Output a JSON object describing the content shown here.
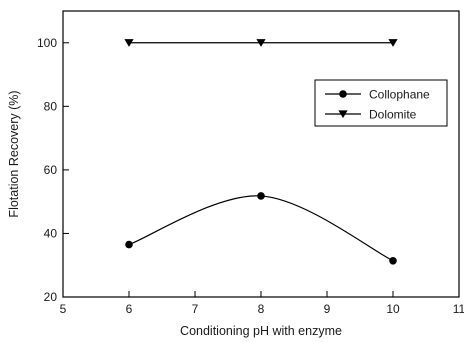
{
  "chart_data": {
    "type": "line",
    "title": "",
    "xlabel": "Conditioning pH with enzyme",
    "ylabel": "Flotation Recovery (%)",
    "xlim": [
      5,
      11
    ],
    "ylim": [
      20,
      110
    ],
    "xticks": [
      5,
      6,
      7,
      8,
      9,
      10,
      11
    ],
    "yticks": [
      20,
      40,
      60,
      80,
      100
    ],
    "grid": false,
    "legend_position": "right",
    "series": [
      {
        "name": "Collophane",
        "marker": "circle",
        "smooth": true,
        "color": "#000000",
        "points": [
          {
            "x": 6,
            "y": 36.5
          },
          {
            "x": 8,
            "y": 51.8
          },
          {
            "x": 10,
            "y": 31.4
          }
        ]
      },
      {
        "name": "Dolomite",
        "marker": "triangle-down",
        "smooth": false,
        "color": "#000000",
        "points": [
          {
            "x": 6,
            "y": 100
          },
          {
            "x": 8,
            "y": 100
          },
          {
            "x": 10,
            "y": 100
          }
        ]
      }
    ]
  }
}
